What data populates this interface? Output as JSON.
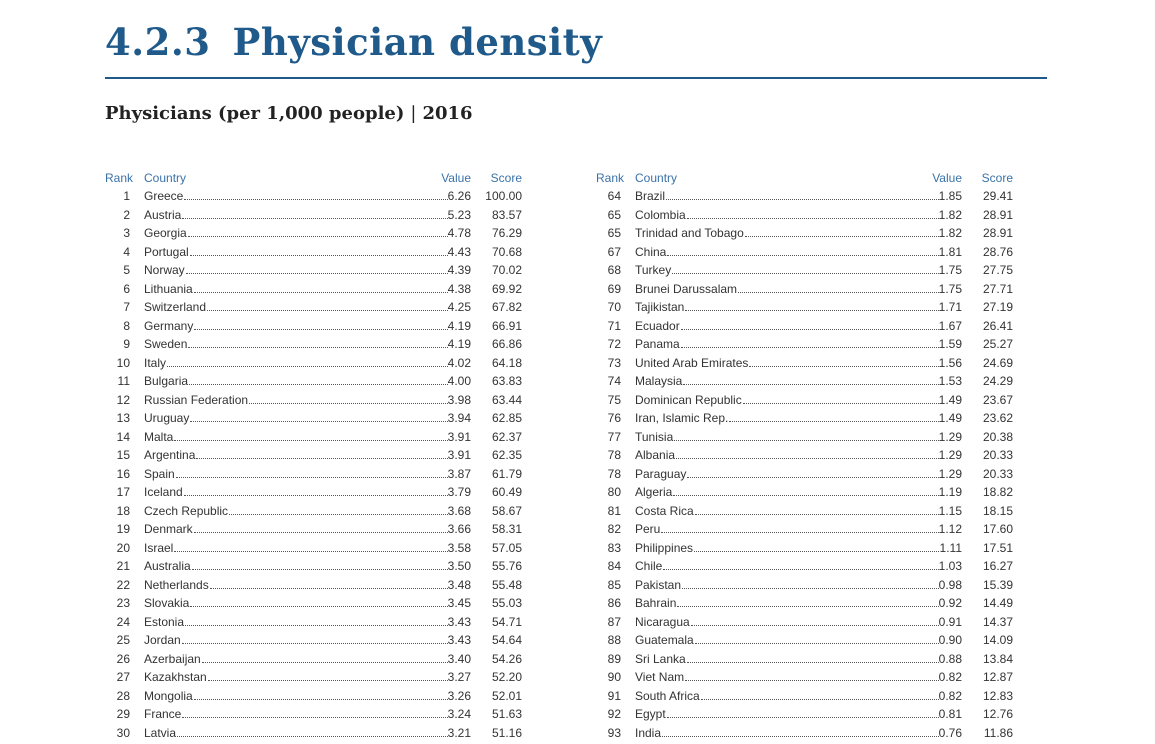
{
  "header": {
    "section_number": "4.2.3",
    "title": "Physician density",
    "subtitle_main": "Physicians (per 1,000 people)",
    "subtitle_sep": "|",
    "subtitle_year": "2016"
  },
  "columns": {
    "rank": "Rank",
    "country": "Country",
    "value": "Value",
    "score": "Score"
  },
  "left_rows": [
    {
      "rank": "1",
      "country": "Greece",
      "value": "6.26",
      "score": "100.00"
    },
    {
      "rank": "2",
      "country": "Austria",
      "value": "5.23",
      "score": "83.57"
    },
    {
      "rank": "3",
      "country": "Georgia",
      "value": "4.78",
      "score": "76.29"
    },
    {
      "rank": "4",
      "country": "Portugal",
      "value": "4.43",
      "score": "70.68"
    },
    {
      "rank": "5",
      "country": "Norway",
      "value": "4.39",
      "score": "70.02"
    },
    {
      "rank": "6",
      "country": "Lithuania",
      "value": "4.38",
      "score": "69.92"
    },
    {
      "rank": "7",
      "country": "Switzerland",
      "value": "4.25",
      "score": "67.82"
    },
    {
      "rank": "8",
      "country": "Germany",
      "value": "4.19",
      "score": "66.91"
    },
    {
      "rank": "9",
      "country": "Sweden",
      "value": "4.19",
      "score": "66.86"
    },
    {
      "rank": "10",
      "country": "Italy",
      "value": "4.02",
      "score": "64.18"
    },
    {
      "rank": "11",
      "country": "Bulgaria",
      "value": "4.00",
      "score": "63.83"
    },
    {
      "rank": "12",
      "country": "Russian Federation",
      "value": "3.98",
      "score": "63.44"
    },
    {
      "rank": "13",
      "country": "Uruguay",
      "value": "3.94",
      "score": "62.85"
    },
    {
      "rank": "14",
      "country": "Malta",
      "value": "3.91",
      "score": "62.37"
    },
    {
      "rank": "15",
      "country": "Argentina",
      "value": "3.91",
      "score": "62.35"
    },
    {
      "rank": "16",
      "country": "Spain",
      "value": "3.87",
      "score": "61.79"
    },
    {
      "rank": "17",
      "country": "Iceland",
      "value": "3.79",
      "score": "60.49"
    },
    {
      "rank": "18",
      "country": "Czech Republic",
      "value": "3.68",
      "score": "58.67"
    },
    {
      "rank": "19",
      "country": "Denmark",
      "value": "3.66",
      "score": "58.31"
    },
    {
      "rank": "20",
      "country": "Israel",
      "value": "3.58",
      "score": "57.05"
    },
    {
      "rank": "21",
      "country": "Australia",
      "value": "3.50",
      "score": "55.76"
    },
    {
      "rank": "22",
      "country": "Netherlands",
      "value": "3.48",
      "score": "55.48"
    },
    {
      "rank": "23",
      "country": "Slovakia",
      "value": "3.45",
      "score": "55.03"
    },
    {
      "rank": "24",
      "country": "Estonia",
      "value": "3.43",
      "score": "54.71"
    },
    {
      "rank": "25",
      "country": "Jordan",
      "value": "3.43",
      "score": "54.64"
    },
    {
      "rank": "26",
      "country": "Azerbaijan",
      "value": "3.40",
      "score": "54.26"
    },
    {
      "rank": "27",
      "country": "Kazakhstan",
      "value": "3.27",
      "score": "52.20"
    },
    {
      "rank": "28",
      "country": "Mongolia",
      "value": "3.26",
      "score": "52.01"
    },
    {
      "rank": "29",
      "country": "France",
      "value": "3.24",
      "score": "51.63"
    },
    {
      "rank": "30",
      "country": "Latvia",
      "value": "3.21",
      "score": "51.16"
    }
  ],
  "right_rows": [
    {
      "rank": "64",
      "country": "Brazil",
      "value": "1.85",
      "score": "29.41"
    },
    {
      "rank": "65",
      "country": "Colombia",
      "value": "1.82",
      "score": "28.91"
    },
    {
      "rank": "65",
      "country": "Trinidad and Tobago",
      "value": "1.82",
      "score": "28.91"
    },
    {
      "rank": "67",
      "country": "China",
      "value": "1.81",
      "score": "28.76"
    },
    {
      "rank": "68",
      "country": "Turkey",
      "value": "1.75",
      "score": "27.75"
    },
    {
      "rank": "69",
      "country": "Brunei Darussalam",
      "value": "1.75",
      "score": "27.71"
    },
    {
      "rank": "70",
      "country": "Tajikistan",
      "value": "1.71",
      "score": "27.19"
    },
    {
      "rank": "71",
      "country": "Ecuador",
      "value": "1.67",
      "score": "26.41"
    },
    {
      "rank": "72",
      "country": "Panama",
      "value": "1.59",
      "score": "25.27"
    },
    {
      "rank": "73",
      "country": "United Arab Emirates",
      "value": "1.56",
      "score": "24.69"
    },
    {
      "rank": "74",
      "country": "Malaysia",
      "value": "1.53",
      "score": "24.29"
    },
    {
      "rank": "75",
      "country": "Dominican Republic",
      "value": "1.49",
      "score": "23.67"
    },
    {
      "rank": "76",
      "country": "Iran, Islamic Rep.",
      "value": "1.49",
      "score": "23.62"
    },
    {
      "rank": "77",
      "country": "Tunisia",
      "value": "1.29",
      "score": "20.38"
    },
    {
      "rank": "78",
      "country": "Albania",
      "value": "1.29",
      "score": "20.33"
    },
    {
      "rank": "78",
      "country": "Paraguay",
      "value": "1.29",
      "score": "20.33"
    },
    {
      "rank": "80",
      "country": "Algeria",
      "value": "1.19",
      "score": "18.82"
    },
    {
      "rank": "81",
      "country": "Costa Rica",
      "value": "1.15",
      "score": "18.15"
    },
    {
      "rank": "82",
      "country": "Peru",
      "value": "1.12",
      "score": "17.60"
    },
    {
      "rank": "83",
      "country": "Philippines",
      "value": "1.11",
      "score": "17.51"
    },
    {
      "rank": "84",
      "country": "Chile",
      "value": "1.03",
      "score": "16.27"
    },
    {
      "rank": "85",
      "country": "Pakistan",
      "value": "0.98",
      "score": "15.39"
    },
    {
      "rank": "86",
      "country": "Bahrain",
      "value": "0.92",
      "score": "14.49"
    },
    {
      "rank": "87",
      "country": "Nicaragua",
      "value": "0.91",
      "score": "14.37"
    },
    {
      "rank": "88",
      "country": "Guatemala",
      "value": "0.90",
      "score": "14.09"
    },
    {
      "rank": "89",
      "country": "Sri Lanka",
      "value": "0.88",
      "score": "13.84"
    },
    {
      "rank": "90",
      "country": "Viet Nam",
      "value": "0.82",
      "score": "12.87"
    },
    {
      "rank": "91",
      "country": "South Africa",
      "value": "0.82",
      "score": "12.83"
    },
    {
      "rank": "92",
      "country": "Egypt",
      "value": "0.81",
      "score": "12.76"
    },
    {
      "rank": "93",
      "country": "India",
      "value": "0.76",
      "score": "11.86"
    }
  ]
}
